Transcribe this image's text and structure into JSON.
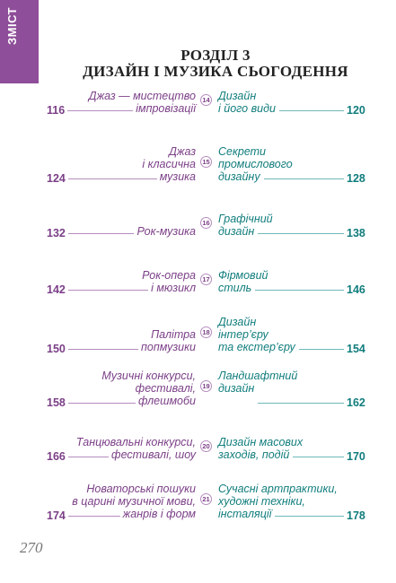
{
  "side_tab": {
    "label": "ЗМІСТ",
    "color": "#8e4e99"
  },
  "heading": {
    "line1": "РОЗДІЛ 3",
    "line2": "ДИЗАЙН І МУЗИКА СЬОГОДЕННЯ"
  },
  "colors": {
    "left": "#7b3f87",
    "right": "#127d7d"
  },
  "entries": [
    {
      "lesson": "14",
      "left_title": [
        "Джаз — мистецтво",
        "імпровізації"
      ],
      "left_page": "116",
      "right_title": [
        "Дизайн",
        "і його види"
      ],
      "right_page": "120"
    },
    {
      "lesson": "15",
      "left_title": [
        "Джаз",
        "і класична",
        "музика"
      ],
      "left_page": "124",
      "right_title": [
        "Секрети",
        "промислового",
        "дизайну"
      ],
      "right_page": "128"
    },
    {
      "lesson": "16",
      "left_title": [
        "Рок-музика"
      ],
      "left_page": "132",
      "right_title": [
        "Графічний",
        "дизайн"
      ],
      "right_page": "138"
    },
    {
      "lesson": "17",
      "left_title": [
        "Рок-опера",
        "і мюзикл"
      ],
      "left_page": "142",
      "right_title": [
        "Фірмовий",
        "стиль"
      ],
      "right_page": "146"
    },
    {
      "lesson": "18",
      "left_title": [
        "Палітра",
        "попмузики"
      ],
      "left_page": "150",
      "right_title": [
        "Дизайн",
        "інтер’єру",
        "та екстер’єру"
      ],
      "right_page": "154"
    },
    {
      "lesson": "19",
      "left_title": [
        "Музичні конкурси,",
        "фестивалі,",
        "флешмоби"
      ],
      "left_page": "158",
      "right_title": [
        "Ландшафтний",
        "дизайн"
      ],
      "right_page": "162"
    },
    {
      "lesson": "20",
      "left_title": [
        "Танцювальні конкурси,",
        "фестивалі, шоу"
      ],
      "left_page": "166",
      "right_title": [
        "Дизайн масових",
        "заходів, подій"
      ],
      "right_page": "170"
    },
    {
      "lesson": "21",
      "left_title": [
        "Новаторські пошуки",
        "в царині музичної мови,",
        "жанрів і форм"
      ],
      "left_page": "174",
      "right_title": [
        "Сучасні артпрактики,",
        "художні техніки,",
        "інсталяції"
      ],
      "right_page": "178"
    }
  ],
  "page_number": "270"
}
